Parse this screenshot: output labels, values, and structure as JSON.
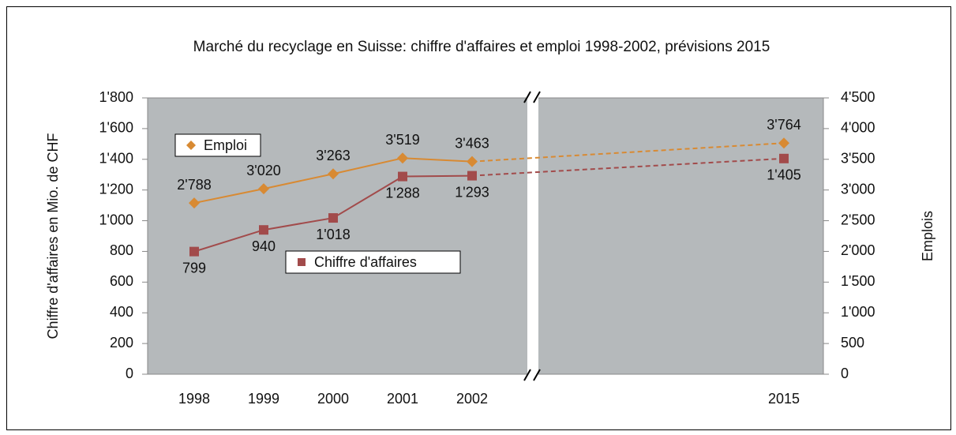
{
  "chart_data": {
    "type": "line",
    "title": "Marché du recyclage en Suisse: chiffre d'affaires et emploi 1998-2002, prévisions 2015",
    "y_label": "Chiffre d'affaires en Mio. de CHF",
    "y2_label": "Emplois",
    "categories": [
      "1998",
      "1999",
      "2000",
      "2001",
      "2002",
      "2015"
    ],
    "series": [
      {
        "name": "Emploi",
        "color": "#d88a33",
        "axis": "y2",
        "marker": "diamond",
        "values": [
          2788,
          3020,
          3263,
          3519,
          3463,
          3764
        ],
        "value_labels": [
          "2'788",
          "3'020",
          "3'263",
          "3'519",
          "3'463",
          "3'764"
        ]
      },
      {
        "name": "Chiffre d'affaires",
        "color": "#a24b4b",
        "axis": "y",
        "marker": "square",
        "values": [
          799,
          940,
          1018,
          1288,
          1293,
          1405
        ],
        "value_labels": [
          "799",
          "940",
          "1'018",
          "1'288",
          "1'293",
          "1'405"
        ]
      }
    ],
    "ylim": [
      0,
      1800
    ],
    "yticks": [
      0,
      200,
      400,
      600,
      800,
      {
        "value": 1000,
        "label": "1'000"
      },
      {
        "value": 1200,
        "label": "1'200"
      },
      {
        "value": 1400,
        "label": "1'400"
      },
      {
        "value": 1600,
        "label": "1'600"
      },
      {
        "value": 1800,
        "label": "1'800"
      }
    ],
    "y2lim": [
      0,
      4500
    ],
    "y2ticks": [
      0,
      500,
      {
        "value": 1000,
        "label": "1'000"
      },
      {
        "value": 1500,
        "label": "1'500"
      },
      {
        "value": 2000,
        "label": "2'000"
      },
      {
        "value": 2500,
        "label": "2'500"
      },
      {
        "value": 3000,
        "label": "3'000"
      },
      {
        "value": 3500,
        "label": "3'500"
      },
      {
        "value": 4000,
        "label": "4'000"
      },
      {
        "value": 4500,
        "label": "4'500"
      }
    ],
    "grid": false
  }
}
